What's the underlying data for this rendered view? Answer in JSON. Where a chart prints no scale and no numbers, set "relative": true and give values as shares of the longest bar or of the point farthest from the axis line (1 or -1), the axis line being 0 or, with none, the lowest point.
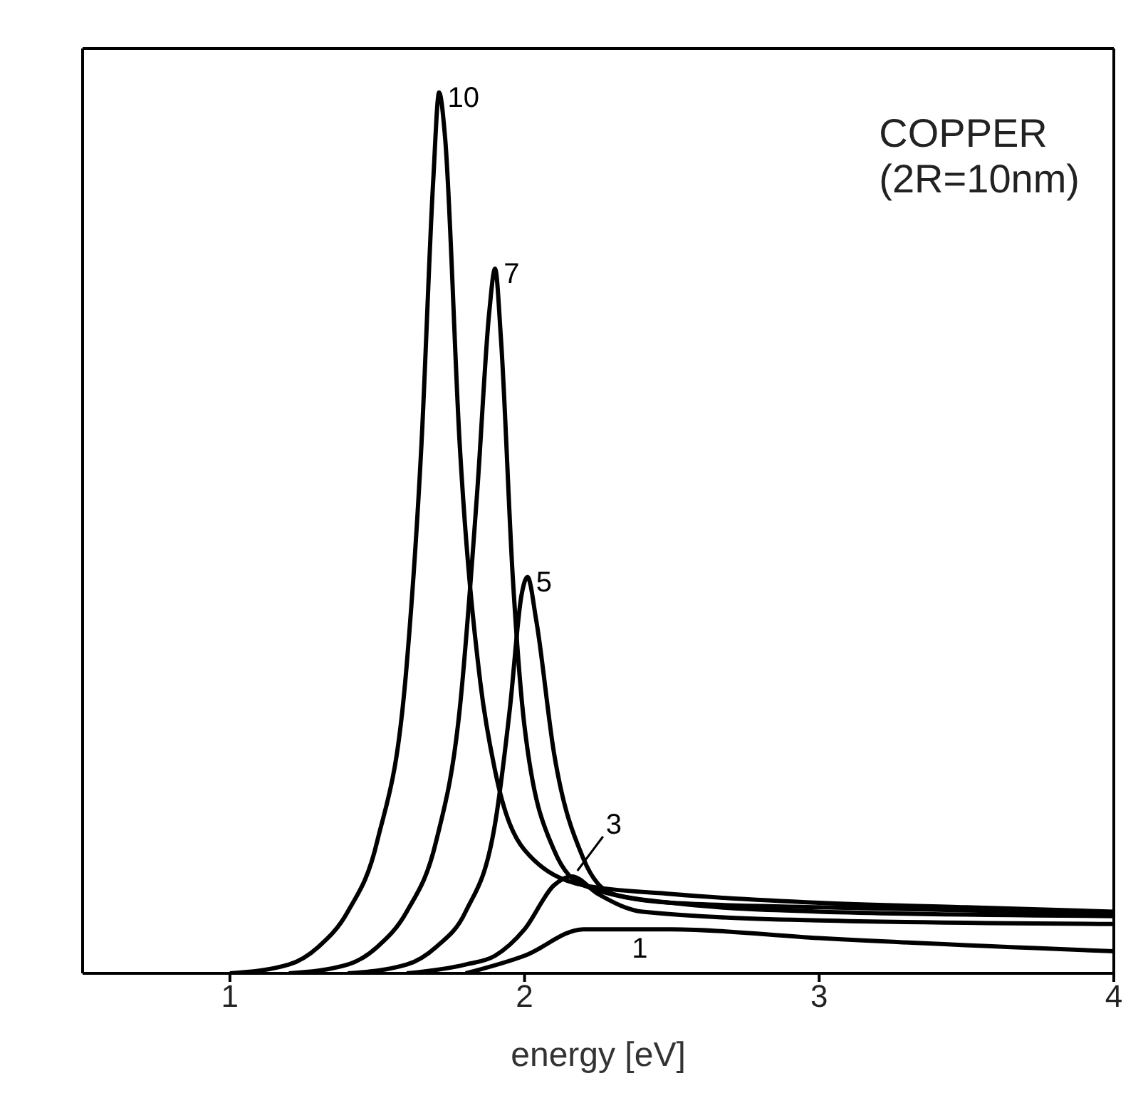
{
  "chart_data": {
    "type": "line",
    "xlabel": "energy [eV]",
    "annotations": [
      "COPPER",
      "(2R=10nm)"
    ],
    "relative": true,
    "xlim": [
      0.5,
      4
    ],
    "xticks": [
      1,
      2,
      3,
      4
    ],
    "grid": false,
    "legend": false,
    "marker": "none",
    "line_style": "solid",
    "series": [
      {
        "name": "10",
        "color": "#000000",
        "x": [
          1.0,
          1.2,
          1.3,
          1.4,
          1.5,
          1.6,
          1.65,
          1.69,
          1.71,
          1.73,
          1.78,
          1.85,
          1.9,
          2.0,
          2.2,
          2.5,
          3.0,
          3.5,
          4.0
        ],
        "values": [
          0,
          0.01,
          0.03,
          0.07,
          0.15,
          0.35,
          0.6,
          0.9,
          1.0,
          0.95,
          0.6,
          0.33,
          0.23,
          0.14,
          0.1,
          0.09,
          0.08,
          0.075,
          0.07
        ]
      },
      {
        "name": "7",
        "color": "#000000",
        "x": [
          1.2,
          1.4,
          1.5,
          1.6,
          1.7,
          1.78,
          1.84,
          1.88,
          1.9,
          1.92,
          1.96,
          2.0,
          2.1,
          2.2,
          2.5,
          3.0,
          4.0
        ],
        "values": [
          0,
          0.01,
          0.03,
          0.07,
          0.15,
          0.3,
          0.55,
          0.75,
          0.8,
          0.72,
          0.45,
          0.28,
          0.14,
          0.1,
          0.08,
          0.075,
          0.068
        ]
      },
      {
        "name": "5",
        "color": "#000000",
        "x": [
          1.4,
          1.6,
          1.7,
          1.8,
          1.9,
          1.95,
          1.99,
          2.01,
          2.04,
          2.1,
          2.2,
          2.3,
          2.5,
          3.0,
          4.0
        ],
        "values": [
          0,
          0.01,
          0.03,
          0.07,
          0.17,
          0.3,
          0.43,
          0.45,
          0.4,
          0.25,
          0.13,
          0.09,
          0.08,
          0.07,
          0.065
        ]
      },
      {
        "name": "3",
        "color": "#000000",
        "x": [
          1.6,
          1.8,
          1.9,
          2.0,
          2.1,
          2.16,
          2.25,
          2.4,
          3.0,
          4.0
        ],
        "values": [
          0,
          0.01,
          0.02,
          0.05,
          0.1,
          0.11,
          0.09,
          0.07,
          0.06,
          0.056
        ]
      },
      {
        "name": "1",
        "color": "#000000",
        "x": [
          1.8,
          2.0,
          2.2,
          2.5,
          3.0,
          4.0
        ],
        "values": [
          0,
          0.02,
          0.05,
          0.05,
          0.04,
          0.025
        ]
      }
    ]
  }
}
